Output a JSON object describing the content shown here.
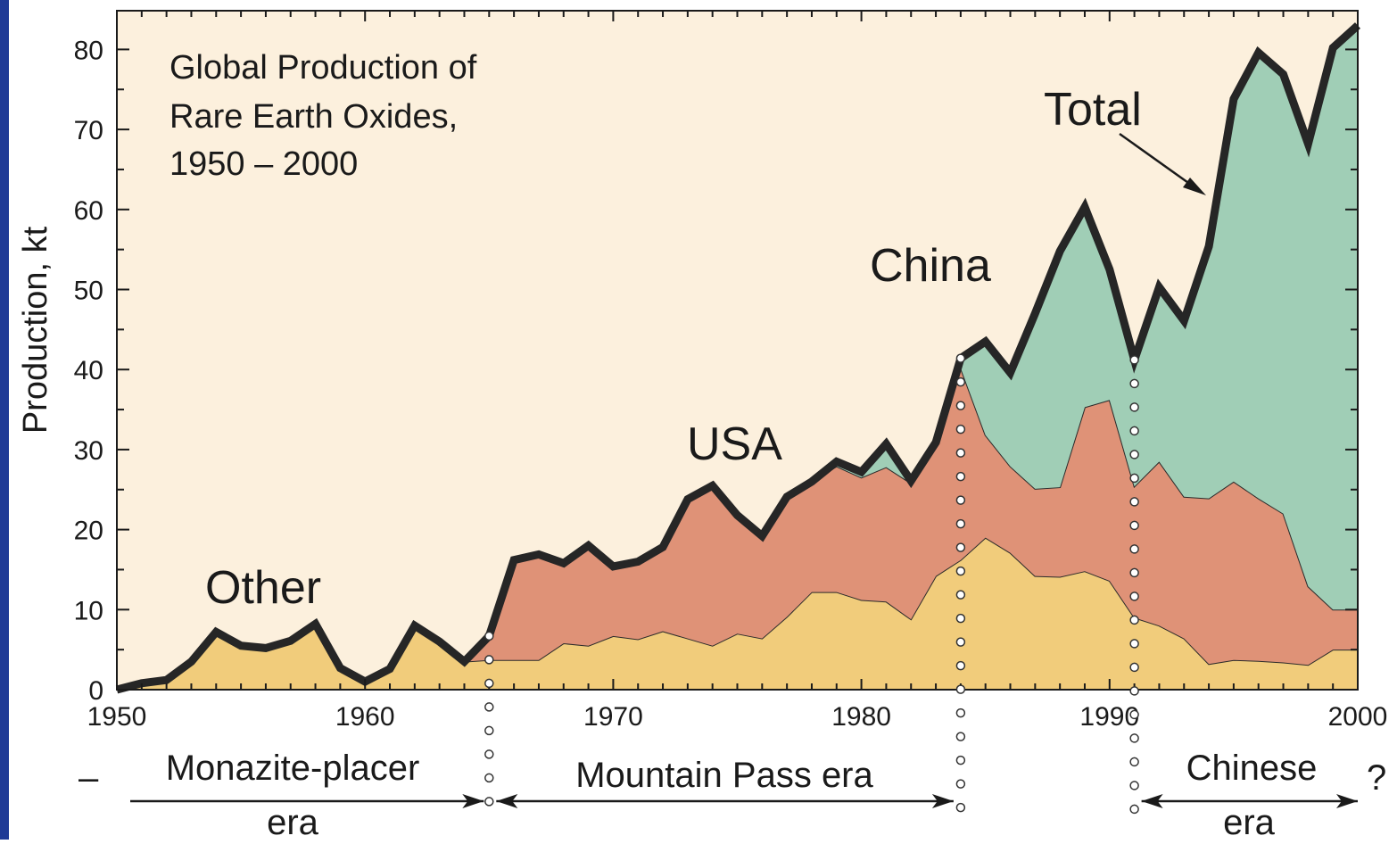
{
  "colors": {
    "frame_accent": "#1f3a96",
    "background": "#fcf0dd",
    "other": "#f1cc7b",
    "usa": "#df9277",
    "china": "#a0ceb6",
    "total_line": "#262626"
  },
  "chart_data": {
    "type": "area",
    "title": "Global Production of\nRare Earth Oxides,\n1950 – 2000",
    "title_lines": [
      "Global Production of",
      "Rare Earth Oxides,",
      "1950 – 2000"
    ],
    "ylabel": "Production, kt",
    "xlabel": "",
    "xlim": [
      1950,
      2000
    ],
    "ylim": [
      0,
      85
    ],
    "x_ticks": [
      1950,
      1960,
      1970,
      1980,
      1990,
      2000
    ],
    "y_ticks": [
      0,
      10,
      20,
      30,
      40,
      50,
      60,
      70,
      80
    ],
    "x": [
      1950,
      1951,
      1952,
      1953,
      1954,
      1955,
      1956,
      1957,
      1958,
      1959,
      1960,
      1961,
      1962,
      1963,
      1964,
      1965,
      1966,
      1967,
      1968,
      1969,
      1970,
      1971,
      1972,
      1973,
      1974,
      1975,
      1976,
      1977,
      1978,
      1979,
      1980,
      1981,
      1982,
      1983,
      1984,
      1985,
      1986,
      1987,
      1988,
      1989,
      1990,
      1991,
      1992,
      1993,
      1994,
      1995,
      1996,
      1997,
      1998,
      1999,
      2000
    ],
    "series": [
      {
        "name": "Other",
        "values": [
          0,
          0.8,
          1.2,
          3.5,
          7.2,
          5.5,
          5.2,
          6.1,
          8.2,
          2.7,
          1.0,
          2.6,
          8.0,
          6.0,
          3.5,
          3.7,
          3.7,
          3.7,
          5.8,
          5.5,
          6.7,
          6.3,
          7.3,
          6.4,
          5.5,
          7.0,
          6.4,
          9.1,
          12.2,
          12.2,
          11.2,
          11.0,
          8.8,
          14.2,
          16.2,
          19.0,
          17.1,
          14.2,
          14.1,
          14.8,
          13.6,
          9.0,
          8.0,
          6.4,
          3.2,
          3.7,
          3.6,
          3.4,
          3.1,
          5.0,
          5.0
        ]
      },
      {
        "name": "USA",
        "values": [
          0,
          0,
          0,
          0,
          0,
          0,
          0,
          0,
          0,
          0,
          0,
          0,
          0,
          0,
          0,
          3.0,
          12.5,
          13.2,
          10.0,
          12.5,
          8.7,
          9.7,
          10.5,
          17.4,
          20.0,
          14.8,
          12.8,
          15.0,
          13.8,
          15.7,
          15.3,
          16.8,
          17.0,
          16.7,
          24.0,
          12.8,
          10.8,
          10.9,
          11.2,
          20.5,
          22.6,
          16.4,
          20.5,
          17.7,
          20.7,
          22.3,
          20.3,
          18.6,
          9.8,
          5.0,
          5.0
        ]
      },
      {
        "name": "China",
        "values": [
          0,
          0,
          0,
          0,
          0,
          0,
          0,
          0,
          0,
          0,
          0,
          0,
          0,
          0,
          0,
          0,
          0,
          0,
          0,
          0,
          0,
          0,
          0,
          0,
          0,
          0,
          0,
          0,
          0,
          0.6,
          0.7,
          2.9,
          0.3,
          0,
          1.2,
          11.7,
          11.7,
          21.9,
          29.5,
          25.0,
          16.3,
          15.8,
          21.8,
          22.0,
          31.5,
          47.8,
          55.7,
          54.9,
          55.3,
          70.2,
          73.0
        ]
      }
    ],
    "total": [
      0,
      0.8,
      1.2,
      3.5,
      7.2,
      5.5,
      5.2,
      6.1,
      8.2,
      2.7,
      1.0,
      2.6,
      8.0,
      6.0,
      3.5,
      6.7,
      16.2,
      16.9,
      15.8,
      18.0,
      15.4,
      16.0,
      17.8,
      23.8,
      25.5,
      21.8,
      19.2,
      24.1,
      26.0,
      28.5,
      27.2,
      30.7,
      26.1,
      30.9,
      41.4,
      43.5,
      39.6,
      47.0,
      54.8,
      60.3,
      52.5,
      41.2,
      50.3,
      46.1,
      55.4,
      73.8,
      79.6,
      76.9,
      68.2,
      80.2,
      83.0
    ],
    "series_labels": [
      "Other",
      "USA",
      "China",
      "Total"
    ],
    "eras": [
      {
        "label_lines": [
          "Monazite-placer",
          "era"
        ]
      },
      {
        "label_lines": [
          "Mountain Pass era"
        ]
      },
      {
        "label_lines": [
          "Chinese",
          "era"
        ]
      }
    ],
    "era_boundaries": [
      1965,
      1984,
      1991
    ],
    "era_dash": "–",
    "era_question": "?"
  }
}
